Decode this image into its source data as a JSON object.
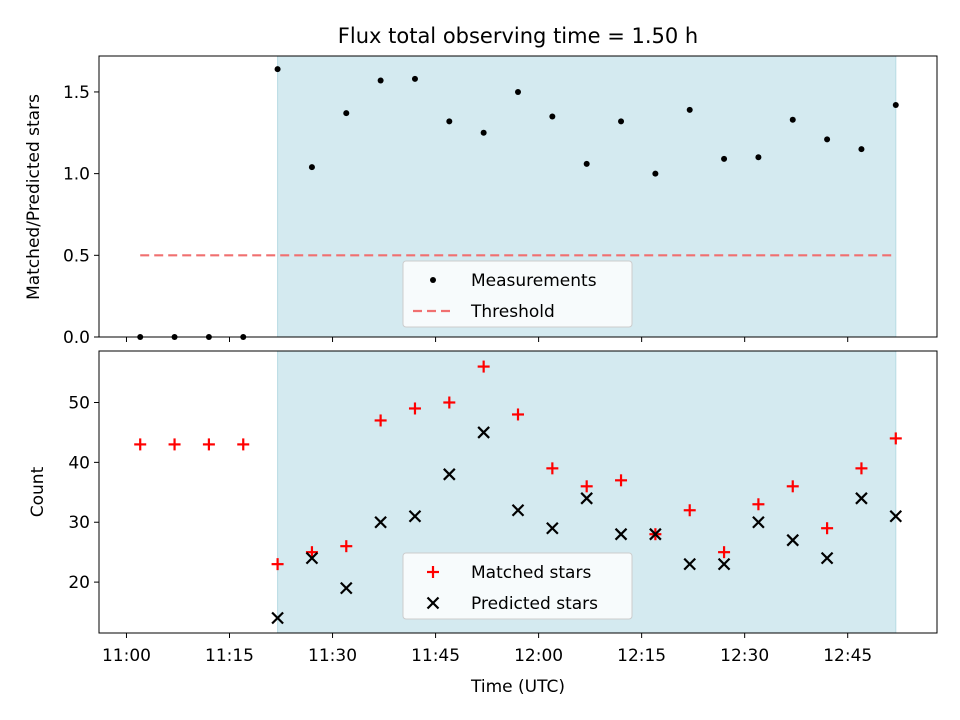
{
  "chart_data": [
    {
      "type": "scatter",
      "title": "Flux total observing time = 1.50 h",
      "ylabel": "Matched/Predicted stars",
      "ylim": [
        0,
        1.72
      ],
      "yticks": [
        0.0,
        0.5,
        1.0,
        1.5
      ],
      "ytick_labels": [
        "0.0",
        "0.5",
        "1.0",
        "1.5"
      ],
      "highlight_span": {
        "x_start": "11:22",
        "x_end": "12:52",
        "color": "#d4eaf0"
      },
      "series": [
        {
          "name": "Measurements",
          "marker": "dot",
          "color": "#000000",
          "x": [
            "11:02",
            "11:07",
            "11:12",
            "11:17",
            "11:22",
            "11:27",
            "11:32",
            "11:37",
            "11:42",
            "11:47",
            "11:52",
            "11:57",
            "12:02",
            "12:07",
            "12:12",
            "12:17",
            "12:22",
            "12:27",
            "12:32",
            "12:37",
            "12:42",
            "12:47",
            "12:52"
          ],
          "y": [
            0.0,
            0.0,
            0.0,
            0.0,
            1.64,
            1.04,
            1.37,
            1.57,
            1.58,
            1.32,
            1.25,
            1.5,
            1.35,
            1.06,
            1.32,
            1.0,
            1.39,
            1.09,
            1.1,
            1.33,
            1.21,
            1.15,
            1.42
          ]
        },
        {
          "name": "Threshold",
          "style": "dashed",
          "color": "#f07070",
          "x": [
            "11:02",
            "12:52"
          ],
          "y": [
            0.5,
            0.5
          ]
        }
      ],
      "legend": "lower-center"
    },
    {
      "type": "scatter",
      "xlabel": "Time (UTC)",
      "ylabel": "Count",
      "ylim": [
        11.5,
        58.6
      ],
      "yticks": [
        20,
        30,
        40,
        50
      ],
      "ytick_labels": [
        "20",
        "30",
        "40",
        "50"
      ],
      "xticks": [
        "11:00",
        "11:15",
        "11:30",
        "11:45",
        "12:00",
        "12:15",
        "12:30",
        "12:45"
      ],
      "xlim": [
        "10:56",
        "12:58"
      ],
      "highlight_span": {
        "x_start": "11:22",
        "x_end": "12:52",
        "color": "#d4eaf0"
      },
      "series": [
        {
          "name": "Matched stars",
          "marker": "plus",
          "color": "#ff0000",
          "x": [
            "11:02",
            "11:07",
            "11:12",
            "11:17",
            "11:22",
            "11:27",
            "11:32",
            "11:37",
            "11:42",
            "11:47",
            "11:52",
            "11:57",
            "12:02",
            "12:07",
            "12:12",
            "12:17",
            "12:22",
            "12:27",
            "12:32",
            "12:37",
            "12:42",
            "12:47",
            "12:52"
          ],
          "y": [
            43,
            43,
            43,
            43,
            23,
            25,
            26,
            47,
            49,
            50,
            56,
            48,
            39,
            36,
            37,
            28,
            32,
            25,
            33,
            36,
            29,
            39,
            44
          ]
        },
        {
          "name": "Predicted stars",
          "marker": "x",
          "color": "#000000",
          "x": [
            "11:22",
            "11:27",
            "11:32",
            "11:37",
            "11:42",
            "11:47",
            "11:52",
            "11:57",
            "12:02",
            "12:07",
            "12:12",
            "12:17",
            "12:22",
            "12:27",
            "12:32",
            "12:37",
            "12:42",
            "12:47",
            "12:52"
          ],
          "y": [
            14,
            24,
            19,
            30,
            31,
            38,
            45,
            32,
            29,
            34,
            28,
            28,
            23,
            23,
            30,
            27,
            24,
            34,
            31
          ]
        }
      ],
      "legend": "lower-center"
    }
  ]
}
